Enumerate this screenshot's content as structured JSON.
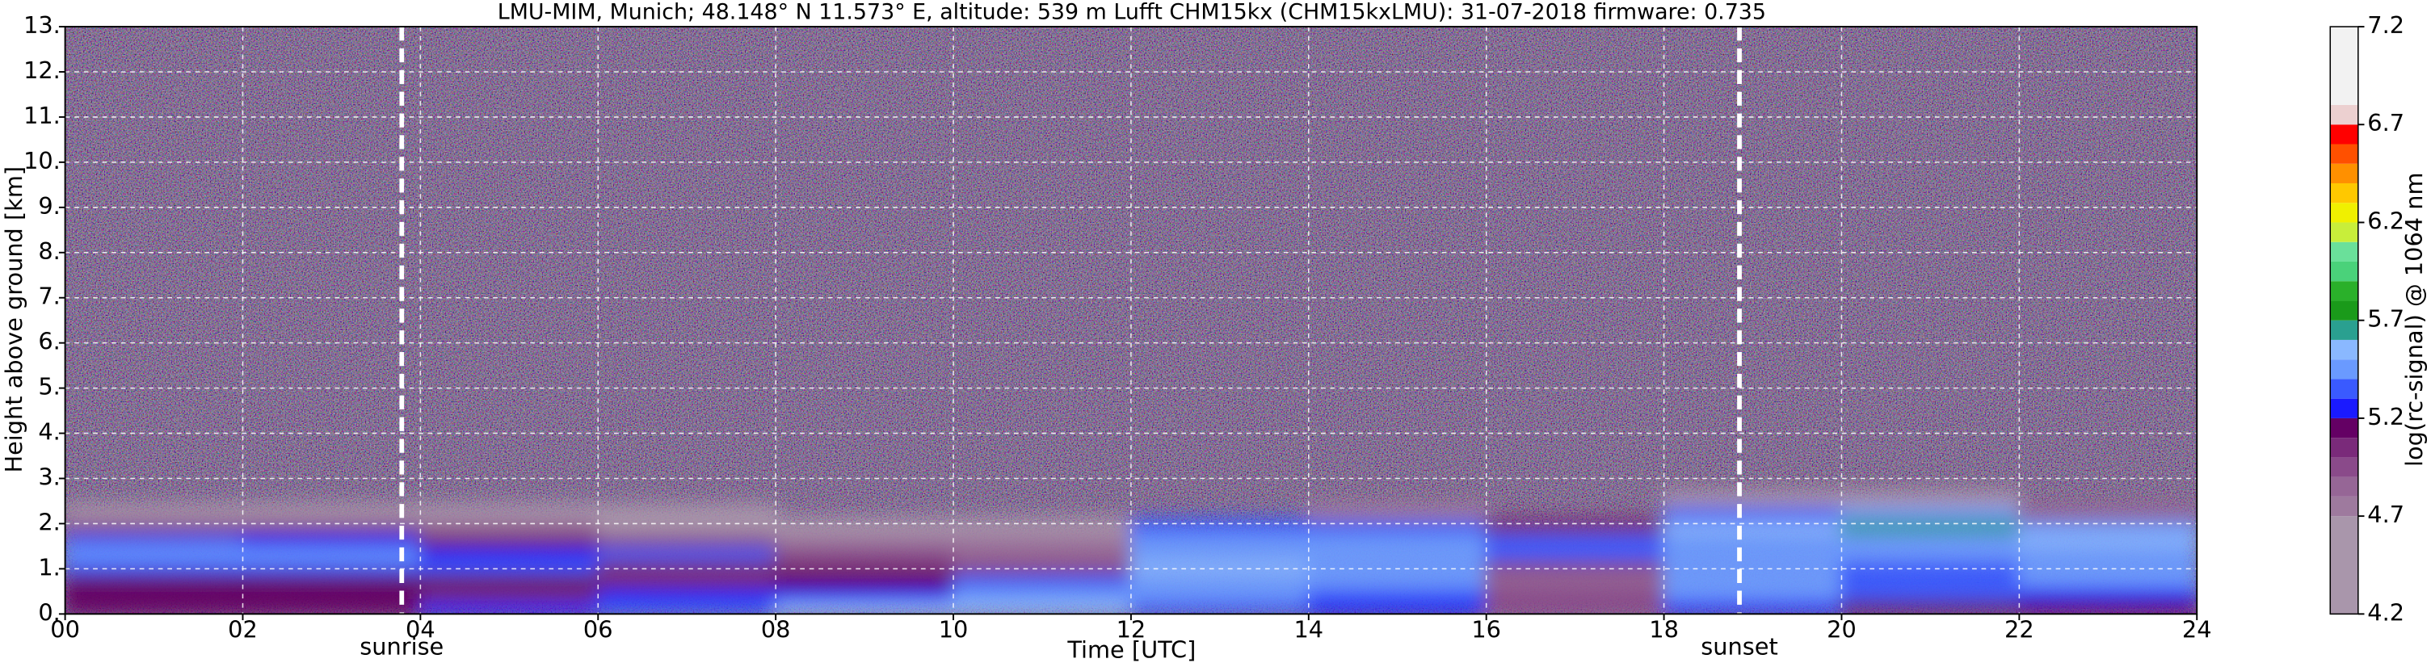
{
  "chart_data": {
    "type": "heatmap",
    "title": "LMU-MIM, Munich; 48.148° N 11.573° E, altitude: 539 m    Lufft CHM15kx (CHM15kxLMU): 31-07-2018    firmware: 0.735",
    "x_label": "Time [UTC]",
    "y_label": "Height above ground [km]",
    "colorbar_label": "log(rc-signal) @ 1064 nm",
    "x_bins": [
      0,
      2,
      4,
      6,
      8,
      10,
      12,
      14,
      16,
      18,
      20,
      22,
      24
    ],
    "y_bins": [
      0,
      0.3,
      0.6,
      0.9,
      1.2,
      1.5,
      1.8,
      2.1,
      2.4,
      2.7
    ],
    "values": [
      [
        5.15,
        5.15,
        5.2,
        5.3,
        5.5,
        5.5,
        5.3,
        5.25,
        4.95,
        5.2,
        5.1,
        5.1
      ],
      [
        5.1,
        5.1,
        5.05,
        5.25,
        5.25,
        5.45,
        5.45,
        5.35,
        4.9,
        5.4,
        5.3,
        5.25
      ],
      [
        5.1,
        5.15,
        5.1,
        5.05,
        5.1,
        5.35,
        5.45,
        5.45,
        4.85,
        5.45,
        5.35,
        5.4
      ],
      [
        5.35,
        5.35,
        5.3,
        5.05,
        5.0,
        4.95,
        5.5,
        5.45,
        4.9,
        5.4,
        5.35,
        5.45
      ],
      [
        5.4,
        5.4,
        5.25,
        5.3,
        4.9,
        4.85,
        5.45,
        5.45,
        5.35,
        5.4,
        5.45,
        5.45
      ],
      [
        5.3,
        5.25,
        5.0,
        4.95,
        4.7,
        4.7,
        5.4,
        5.4,
        5.3,
        5.45,
        5.45,
        5.5
      ],
      [
        4.95,
        4.95,
        4.8,
        4.6,
        4.5,
        4.5,
        5.3,
        5.35,
        5.0,
        5.55,
        5.6,
        5.45
      ],
      [
        4.5,
        4.5,
        4.5,
        4.4,
        null,
        null,
        null,
        4.7,
        null,
        5.3,
        5.45,
        4.8
      ],
      [
        null,
        null,
        null,
        null,
        null,
        null,
        null,
        null,
        null,
        4.5,
        4.6,
        null
      ]
    ],
    "xlim": [
      0,
      24
    ],
    "xticks": [
      {
        "value": 0,
        "label": "00"
      },
      {
        "value": 2,
        "label": "02"
      },
      {
        "value": 4,
        "label": "04"
      },
      {
        "value": 6,
        "label": "06"
      },
      {
        "value": 8,
        "label": "08"
      },
      10,
      12,
      14,
      16,
      18,
      20,
      22,
      24
    ],
    "ylim": [
      0,
      13
    ],
    "yticks": [
      {
        "value": 0,
        "label": "0."
      },
      {
        "value": 1,
        "label": "1."
      },
      {
        "value": 2,
        "label": "2."
      },
      {
        "value": 3,
        "label": "3."
      },
      {
        "value": 4,
        "label": "4."
      },
      {
        "value": 5,
        "label": "5."
      },
      {
        "value": 6,
        "label": "6."
      },
      {
        "value": 7,
        "label": "7."
      },
      {
        "value": 8,
        "label": "8."
      },
      {
        "value": 9,
        "label": "9."
      },
      {
        "value": 10,
        "label": "10."
      },
      {
        "value": 11,
        "label": "11."
      },
      {
        "value": 12,
        "label": "12."
      },
      {
        "value": 13,
        "label": "13."
      }
    ],
    "grid": true,
    "clim": [
      4.2,
      7.2
    ],
    "cticks": [
      4.2,
      4.7,
      5.2,
      5.7,
      6.2,
      6.7,
      7.2
    ],
    "clevels": [
      4.2,
      4.7,
      4.8,
      4.9,
      5.0,
      5.1,
      5.2,
      5.3,
      5.4,
      5.5,
      5.6,
      5.7,
      5.8,
      5.9,
      6.0,
      6.1,
      6.2,
      6.3,
      6.4,
      6.5,
      6.6,
      6.7,
      6.8,
      7.2
    ],
    "ccolors": [
      "#a996ab",
      "#9e7a9e",
      "#966696",
      "#8a4a8a",
      "#7a2a7a",
      "#640064",
      "#1a1aff",
      "#3a5aff",
      "#6a9aff",
      "#8ab8ff",
      "#2aa090",
      "#1a9a1a",
      "#2ab02a",
      "#4ad27a",
      "#6ae09a",
      "#c8ee3a",
      "#f0f000",
      "#ffc800",
      "#ff9000",
      "#ff5000",
      "#ff0000",
      "#ecd0d0",
      "#f2f2f2"
    ],
    "vlines": [
      {
        "x": 3.79,
        "label": "sunrise"
      },
      {
        "x": 18.85,
        "label": "sunset"
      }
    ]
  }
}
